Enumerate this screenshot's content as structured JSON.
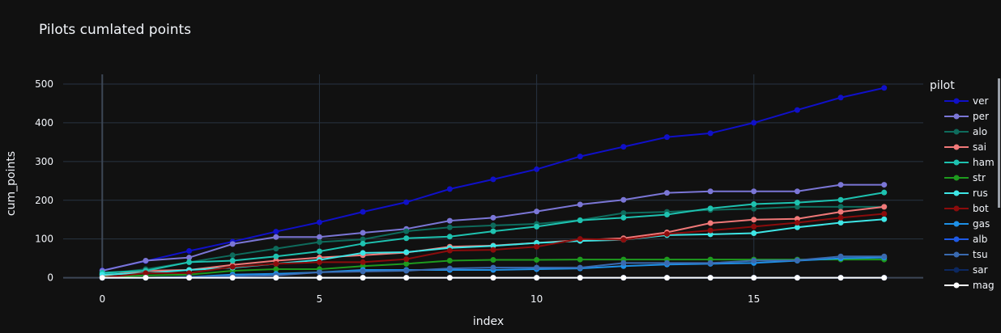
{
  "chart_data": {
    "type": "line",
    "title": "Pilots cumlated points",
    "xlabel": "index",
    "ylabel": "cum_points",
    "xlim": [
      -0.9,
      18.9
    ],
    "ylim": [
      -5,
      525
    ],
    "xticks": [
      0,
      5,
      10,
      15
    ],
    "yticks": [
      0,
      100,
      200,
      300,
      400,
      500
    ],
    "grid": true,
    "legend_title": "pilot",
    "legend_position": "right",
    "x": [
      0,
      1,
      2,
      3,
      4,
      5,
      6,
      7,
      8,
      9,
      10,
      11,
      12,
      13,
      14,
      15,
      16,
      17,
      18
    ],
    "series": [
      {
        "name": "ver",
        "color": "#1010c8",
        "values": [
          19,
          43,
          69,
          93,
          119,
          143,
          170,
          195,
          229,
          254,
          280,
          313,
          338,
          363,
          373,
          400,
          433,
          465,
          490
        ]
      },
      {
        "name": "per",
        "color": "#7b76d6",
        "values": [
          18,
          44,
          52,
          87,
          105,
          105,
          116,
          126,
          147,
          155,
          171,
          189,
          201,
          219,
          223,
          223,
          223,
          240,
          240
        ]
      },
      {
        "name": "alo",
        "color": "#0e6b5c",
        "values": [
          10,
          22,
          40,
          58,
          75,
          92,
          99,
          120,
          130,
          135,
          139,
          149,
          167,
          170,
          175,
          178,
          183,
          183,
          183
        ]
      },
      {
        "name": "sai",
        "color": "#f07878",
        "values": [
          5,
          18,
          20,
          33,
          44,
          52,
          58,
          65,
          80,
          83,
          90,
          97,
          102,
          117,
          141,
          150,
          152,
          170,
          183
        ]
      },
      {
        "name": "ham",
        "color": "#1ec2b0",
        "values": [
          13,
          18,
          40,
          44,
          55,
          68,
          88,
          102,
          106,
          120,
          132,
          148,
          155,
          163,
          179,
          190,
          194,
          201,
          220
        ]
      },
      {
        "name": "str",
        "color": "#1e9a1e",
        "values": [
          2,
          6,
          8,
          18,
          22,
          22,
          30,
          36,
          44,
          46,
          46,
          47,
          47,
          47,
          47,
          47,
          47,
          47,
          47
        ]
      },
      {
        "name": "rus",
        "color": "#3ee6e6",
        "values": [
          8,
          12,
          20,
          26,
          36,
          46,
          64,
          66,
          77,
          82,
          90,
          95,
          98,
          110,
          112,
          115,
          130,
          142,
          151
        ]
      },
      {
        "name": "bot",
        "color": "#8b0c0c",
        "values": [
          0,
          12,
          12,
          28,
          36,
          40,
          40,
          48,
          70,
          72,
          80,
          100,
          98,
          113,
          122,
          132,
          142,
          155,
          165
        ]
      },
      {
        "name": "gas",
        "color": "#1e90e6",
        "values": [
          0,
          0,
          2,
          8,
          10,
          14,
          20,
          20,
          20,
          20,
          22,
          24,
          30,
          34,
          36,
          38,
          44,
          50,
          52
        ]
      },
      {
        "name": "alb",
        "color": "#1e5ae6",
        "values": [
          0,
          0,
          0,
          0,
          0,
          0,
          0,
          0,
          0,
          0,
          0,
          0,
          0,
          0,
          0,
          0,
          0,
          0,
          0
        ]
      },
      {
        "name": "tsu",
        "color": "#3a6ab0",
        "values": [
          0,
          0,
          2,
          4,
          6,
          14,
          16,
          18,
          24,
          26,
          26,
          26,
          38,
          38,
          38,
          44,
          45,
          55,
          55
        ]
      },
      {
        "name": "sar",
        "color": "#0c2860",
        "values": [
          0,
          0,
          0,
          0,
          0,
          0,
          0,
          0,
          0,
          0,
          0,
          0,
          0,
          0,
          0,
          0,
          0,
          0,
          0
        ]
      },
      {
        "name": "mag",
        "color": "#ffffff",
        "values": [
          0,
          0,
          0,
          0,
          0,
          0,
          0,
          0,
          0,
          0,
          0,
          0,
          0,
          0,
          0,
          0,
          0,
          0,
          0
        ]
      }
    ]
  }
}
